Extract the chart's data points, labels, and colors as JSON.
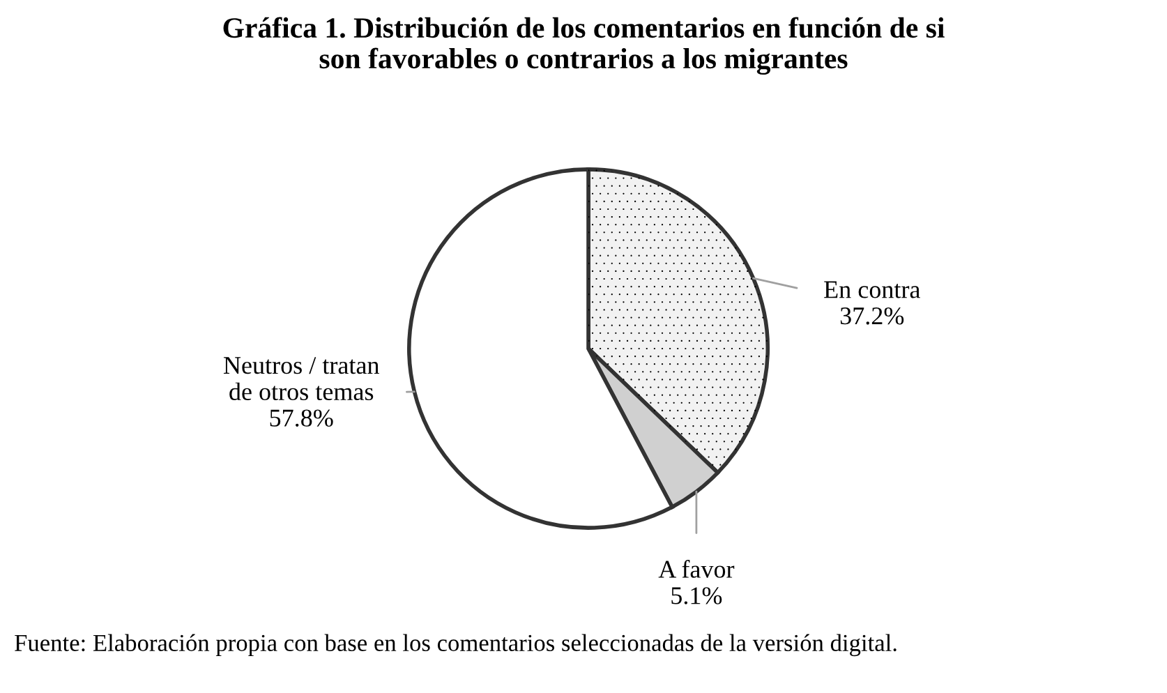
{
  "chart_data": {
    "type": "pie",
    "title": "Gráfica 1. Distribución de los comentarios en función de si\nson favorables o contrarios a los migrantes",
    "categories": [
      "En contra",
      "A favor",
      "Neutros / tratan\nde otros temas"
    ],
    "values": [
      37.2,
      5.1,
      57.8
    ],
    "value_labels": [
      "37.2%",
      "5.1%",
      "57.8%"
    ],
    "colors": [
      "#f2f2f2",
      "#d0d0d0",
      "#ffffff"
    ],
    "annotations": [
      "Fuente: Elaboración propia con base en los comentarios seleccionadas de la versión digital."
    ]
  }
}
